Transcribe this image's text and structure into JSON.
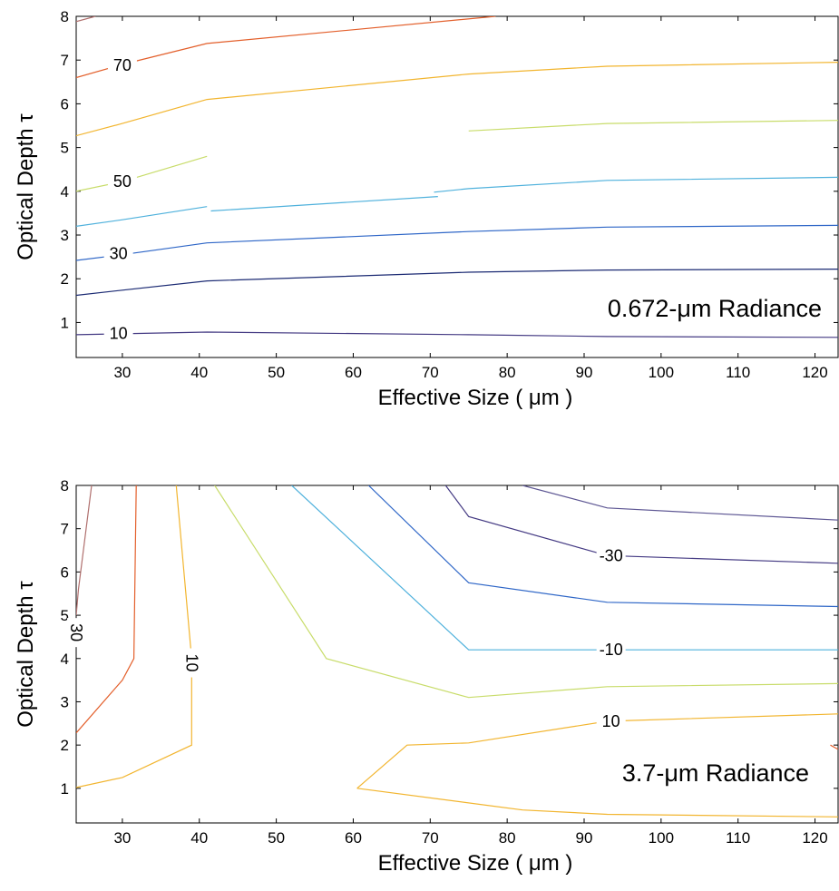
{
  "chart_data": [
    {
      "type": "line",
      "subtype": "contour",
      "annotation": "0.672-μm Radiance",
      "xlabel": "Effective Size ( μm )",
      "ylabel": "Optical Depth τ",
      "xlim": [
        24,
        123
      ],
      "ylim": [
        0.2,
        8
      ],
      "xticks": [
        30,
        40,
        50,
        60,
        70,
        80,
        90,
        100,
        110,
        120
      ],
      "yticks": [
        1,
        2,
        3,
        4,
        5,
        6,
        7,
        8
      ],
      "grid": false,
      "series": [
        {
          "color": "#443a83",
          "points": [
            [
              24,
              0.72
            ],
            [
              41,
              0.78
            ],
            [
              75,
              0.72
            ],
            [
              93,
              0.68
            ],
            [
              123,
              0.66
            ]
          ],
          "label": "10",
          "label_at": [
            29.5,
            0.75
          ]
        },
        {
          "color": "#1b2a73",
          "points": [
            [
              24,
              1.62
            ],
            [
              30,
              1.74
            ],
            [
              41,
              1.95
            ],
            [
              75,
              2.15
            ],
            [
              93,
              2.2
            ],
            [
              123,
              2.22
            ]
          ]
        },
        {
          "color": "#2e66c7",
          "points": [
            [
              24,
              2.42
            ],
            [
              30,
              2.55
            ],
            [
              41,
              2.82
            ],
            [
              75,
              3.08
            ],
            [
              93,
              3.18
            ],
            [
              123,
              3.22
            ]
          ],
          "label": "30",
          "label_at": [
            29.5,
            2.58
          ]
        },
        {
          "color": "#4fb1dc",
          "points": [
            [
              24,
              3.2
            ],
            [
              30,
              3.35
            ],
            [
              41,
              3.65
            ]
          ]
        },
        {
          "color": "#4fb1dc",
          "points": [
            [
              41.5,
              3.55
            ],
            [
              71,
              3.88
            ]
          ]
        },
        {
          "color": "#4fb1dc",
          "points": [
            [
              70.5,
              3.98
            ],
            [
              75,
              4.06
            ],
            [
              93,
              4.25
            ],
            [
              123,
              4.32
            ]
          ]
        },
        {
          "color": "#c8dc6a",
          "points": [
            [
              24,
              4.0
            ],
            [
              30,
              4.22
            ],
            [
              41,
              4.8
            ]
          ],
          "label": "50",
          "label_at": [
            30,
            4.22
          ]
        },
        {
          "color": "#c8dc6a",
          "points": [
            [
              75,
              5.38
            ],
            [
              93,
              5.55
            ],
            [
              123,
              5.62
            ]
          ]
        },
        {
          "color": "#f2b52f",
          "points": [
            [
              24,
              5.27
            ],
            [
              30,
              5.55
            ],
            [
              41,
              6.1
            ],
            [
              75,
              6.68
            ],
            [
              93,
              6.86
            ],
            [
              123,
              6.95
            ]
          ]
        },
        {
          "color": "#e35f2b",
          "points": [
            [
              24,
              6.6
            ],
            [
              30,
              6.9
            ],
            [
              41,
              7.38
            ],
            [
              78.5,
              8.0
            ]
          ],
          "label": "70",
          "label_at": [
            30,
            6.88
          ]
        },
        {
          "color": "#b0706e",
          "points": [
            [
              24,
              7.88
            ],
            [
              26.5,
              8.0
            ]
          ]
        }
      ]
    },
    {
      "type": "line",
      "subtype": "contour",
      "annotation": "3.7-μm Radiance",
      "xlabel": "Effective Size ( μm )",
      "ylabel": "Optical Depth τ",
      "xlim": [
        24,
        123
      ],
      "ylim": [
        0.2,
        8
      ],
      "xticks": [
        30,
        40,
        50,
        60,
        70,
        80,
        90,
        100,
        110,
        120
      ],
      "yticks": [
        1,
        2,
        3,
        4,
        5,
        6,
        7,
        8
      ],
      "grid": false,
      "series": [
        {
          "color": "#b0706e",
          "points": [
            [
              24,
              5.0
            ],
            [
              24.3,
              5.6
            ],
            [
              26,
              8.0
            ]
          ],
          "label": "30",
          "label_at": [
            24,
            4.6
          ]
        },
        {
          "color": "#e35f2b",
          "points": [
            [
              24,
              2.28
            ],
            [
              30,
              3.5
            ],
            [
              31.5,
              4.0
            ],
            [
              31.8,
              8.0
            ]
          ]
        },
        {
          "color": "#f2b52f",
          "points": [
            [
              24,
              1.02
            ],
            [
              30,
              1.25
            ],
            [
              39,
              2.0
            ],
            [
              39,
              4.0
            ],
            [
              37,
              8.0
            ]
          ],
          "label": "10",
          "label_at": [
            39,
            3.9
          ]
        },
        {
          "color": "#c8dc6a",
          "points": [
            [
              42,
              8.0
            ],
            [
              56.5,
              4.0
            ],
            [
              75,
              3.1
            ],
            [
              93,
              3.35
            ],
            [
              123,
              3.42
            ]
          ]
        },
        {
          "color": "#4fb1dc",
          "points": [
            [
              52,
              8.0
            ],
            [
              75,
              4.2
            ],
            [
              93,
              4.2
            ],
            [
              123,
              4.2
            ]
          ],
          "label": "-10",
          "label_at": [
            93.5,
            4.2
          ]
        },
        {
          "color": "#2e66c7",
          "points": [
            [
              62,
              8.0
            ],
            [
              75,
              5.75
            ],
            [
              93,
              5.3
            ],
            [
              123,
              5.2
            ]
          ]
        },
        {
          "color": "#443a83",
          "points": [
            [
              72,
              8.0
            ],
            [
              75,
              7.28
            ],
            [
              93,
              6.38
            ],
            [
              123,
              6.2
            ]
          ],
          "label": "-30",
          "label_at": [
            93.5,
            6.38
          ]
        },
        {
          "color": "#5d5693",
          "points": [
            [
              82,
              8.0
            ],
            [
              93,
              7.48
            ],
            [
              123,
              7.2
            ]
          ]
        },
        {
          "color": "#f2b52f",
          "points": [
            [
              60.5,
              1.0
            ],
            [
              67,
              2.0
            ],
            [
              75,
              2.05
            ],
            [
              93,
              2.55
            ],
            [
              123,
              2.72
            ]
          ],
          "label": "10",
          "label_at": [
            93.5,
            2.55
          ]
        },
        {
          "color": "#f2b52f",
          "points": [
            [
              60.5,
              1.0
            ],
            [
              82,
              0.5
            ],
            [
              93,
              0.4
            ],
            [
              123,
              0.34
            ]
          ]
        },
        {
          "color": "#e35f2b",
          "points": [
            [
              122,
              2.0
            ],
            [
              123,
              1.9
            ]
          ]
        }
      ]
    }
  ]
}
